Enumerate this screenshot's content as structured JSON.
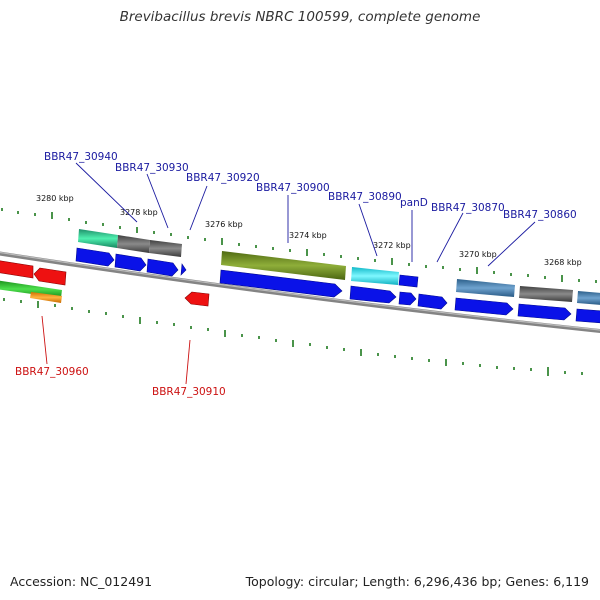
{
  "header": {
    "title": "Brevibacillus brevis NBRC 100599, complete genome"
  },
  "footer": {
    "accession": "Accession: NC_012491",
    "summary": "Topology: circular; Length: 6,296,436 bp; Genes: 6,119"
  },
  "colors": {
    "forward": "#0a12e8",
    "reverse": "#ee1111",
    "label_forward": "#1a1aa0",
    "label_reverse": "#cc1111",
    "backbone": "#8a8a8a",
    "ticks": "#1d7a1d"
  },
  "kbp_labels": [
    "3280 kbp",
    "3278 kbp",
    "3276 kbp",
    "3274 kbp",
    "3272 kbp",
    "3270 kbp",
    "3268 kbp"
  ],
  "gene_labels": {
    "forward": [
      "BBR47_30940",
      "BBR47_30930",
      "BBR47_30920",
      "BBR47_30900",
      "BBR47_30890",
      "panD",
      "BBR47_30870",
      "BBR47_30860"
    ],
    "reverse": [
      "BBR47_30960",
      "BBR47_30910"
    ]
  }
}
